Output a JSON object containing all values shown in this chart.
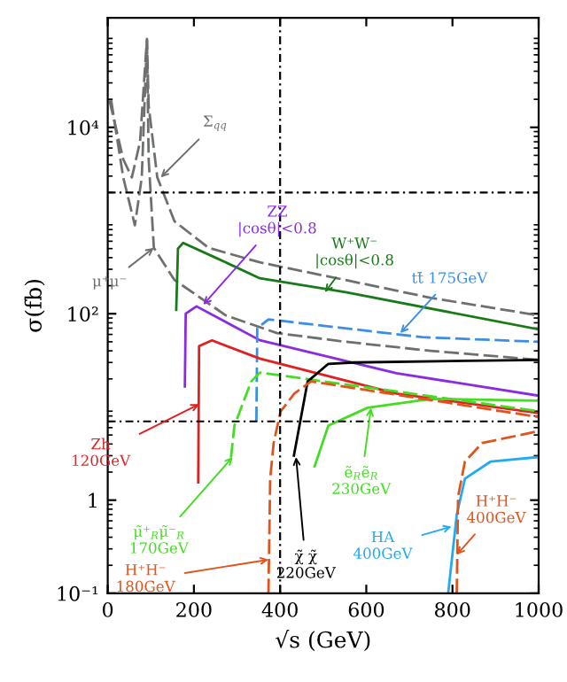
{
  "chart_data": {
    "type": "line",
    "xlabel": "√s (GeV)",
    "ylabel": "σ(fb)",
    "log": "y",
    "xlim": [
      0,
      1000
    ],
    "xticks": [
      0,
      200,
      400,
      600,
      800,
      1000
    ],
    "ylim": [
      0.1,
      150000
    ],
    "yticks": [
      {
        "value": 10000,
        "label": "10⁴"
      },
      {
        "value": 100,
        "label": "10²"
      },
      1,
      {
        "value": 0.1,
        "label": "10⁻¹"
      }
    ],
    "grid": false,
    "legend": false,
    "marker": "none",
    "series": [
      {
        "color": "#6e7070",
        "line_style": "dashed",
        "x": [
          4,
          36,
          56,
          75,
          91,
          95,
          115,
          155,
          234,
          353,
          552,
          750,
          1000
        ],
        "values": [
          19500,
          4550,
          2900,
          7000,
          89000,
          17000,
          2900,
          980,
          510,
          356,
          230,
          148,
          96
        ]
      },
      {
        "color": "#6e7070",
        "line_style": "dashed",
        "x": [
          8,
          36,
          63,
          79,
          91,
          95,
          107,
          155,
          274,
          393,
          552,
          750,
          1000
        ],
        "values": [
          19500,
          2900,
          890,
          2900,
          89000,
          4550,
          510,
          230,
          96,
          62,
          50,
          40,
          32
        ]
      },
      {
        "color": "#1a7a1a",
        "line_style": "solid",
        "x": [
          159,
          163,
          175,
          250,
          353,
          552,
          1000
        ],
        "values": [
          110,
          500,
          575,
          400,
          240,
          170,
          68
        ]
      },
      {
        "color": "#8a2be2",
        "line_style": "solid",
        "x": [
          179,
          181,
          206,
          353,
          670,
          1000
        ],
        "values": [
          16.6,
          100,
          120,
          52,
          23,
          13.2
        ]
      },
      {
        "color": "#3a8ee6",
        "line_style": "dashed",
        "x": [
          345,
          347,
          373,
          730,
          1000
        ],
        "values": [
          7,
          70,
          87,
          56,
          50
        ]
      },
      {
        "color": "#e02020",
        "line_style": "solid",
        "x": [
          210,
          212,
          242,
          353,
          670,
          1000
        ],
        "values": [
          1.55,
          45,
          51.8,
          33,
          13.9,
          8.6
        ]
      },
      {
        "color": "#44dd22",
        "line_style": "dashed",
        "x": [
          286,
          294,
          333,
          353,
          1000
        ],
        "values": [
          2.86,
          6.3,
          18.8,
          23.4,
          9
        ]
      },
      {
        "color": "#000000",
        "line_style": "solid",
        "x": [
          432,
          464,
          512,
          571,
          1000
        ],
        "values": [
          3,
          18.8,
          29,
          30,
          32
        ]
      },
      {
        "color": "#44dd22",
        "line_style": "solid",
        "x": [
          480,
          512,
          603,
          750,
          1000
        ],
        "values": [
          2.3,
          6.3,
          9.8,
          12.2,
          11.7
        ]
      },
      {
        "color": "#e0541c",
        "line_style": "dashed",
        "x": [
          373,
          377,
          385,
          401,
          433,
          472,
          1000
        ],
        "values": [
          0.1,
          1.7,
          4.1,
          8.9,
          13.9,
          18.8,
          7.8
        ]
      },
      {
        "color": "#22aaee",
        "line_style": "solid",
        "x": [
          790,
          810,
          829,
          889,
          1000
        ],
        "values": [
          0.1,
          0.7,
          1.7,
          2.6,
          2.9
        ]
      },
      {
        "color": "#e0541c",
        "line_style": "dashed",
        "x": [
          810,
          813,
          829,
          869,
          1000
        ],
        "values": [
          0.1,
          1.09,
          2.6,
          4.1,
          5.5
        ]
      }
    ],
    "ref_lines": [
      {
        "axis": "y",
        "value": 2000,
        "color": "#000000",
        "line_style": "dotted"
      },
      {
        "axis": "y",
        "value": 7,
        "color": "#000000",
        "line_style": "dotted"
      },
      {
        "axis": "x",
        "value": 400,
        "color": "#000000",
        "line_style": "dotted"
      }
    ],
    "annotations": [
      {
        "text": "Σ$_{qq}$",
        "x": 123,
        "y": 2900
      },
      {
        "text": "μ⁺μ⁻",
        "x": 107,
        "y": 510
      },
      {
        "text": "ZZ\n|cosθ|<0.8",
        "x": 222,
        "y": 125
      },
      {
        "text": "W⁺W⁻\n|cosθ|<0.8",
        "x": 504,
        "y": 170
      },
      {
        "text": "tt̄ 175GeV",
        "x": 679,
        "y": 62
      },
      {
        "text": "Zh\n120GeV",
        "x": 212,
        "y": 10.7
      },
      {
        "text": "μ̃⁺$_{R}$μ̃⁻$_{R}$\n170GeV",
        "x": 290,
        "y": 2.9
      },
      {
        "text": "H⁺H⁻\n180GeV",
        "x": 373,
        "y": 0.23
      },
      {
        "text": "χ̃ χ̃\n220GeV",
        "x": 437,
        "y": 2.9
      },
      {
        "text": "ẽ$_{R}$ẽ$_{R}$\n230GeV",
        "x": 611,
        "y": 9.8
      },
      {
        "text": "HA\n400GeV",
        "x": 798,
        "y": 0.52
      },
      {
        "text": "H⁺H⁻\n400GeV",
        "x": 810,
        "y": 0.26
      }
    ]
  }
}
